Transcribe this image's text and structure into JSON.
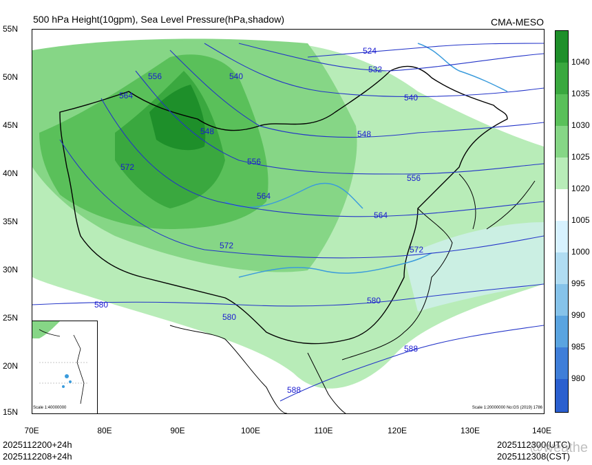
{
  "header": {
    "title": "500 hPa Height(10gpm), Sea Level Pressure(hPa,shadow)",
    "source": "CMA-MESO"
  },
  "axes": {
    "lat_labels": [
      "55N",
      "50N",
      "45N",
      "40N",
      "35N",
      "30N",
      "25N",
      "20N",
      "15N"
    ],
    "lon_labels": [
      "70E",
      "80E",
      "90E",
      "100E",
      "110E",
      "120E",
      "130E",
      "140E"
    ]
  },
  "colorbar": {
    "labels": [
      "1040",
      "1035",
      "1030",
      "1025",
      "1020",
      "1005",
      "1000",
      "995",
      "990",
      "985",
      "980"
    ],
    "colors": [
      "#1e8f2a",
      "#3aa83f",
      "#5ac05a",
      "#86d686",
      "#b8ecb8",
      "#ffffff",
      "#d7f2ff",
      "#b0dcf2",
      "#86c3ea",
      "#5aa4e0",
      "#3f7ed8",
      "#2a5fcf"
    ]
  },
  "contours": {
    "labels": [
      "524",
      "532",
      "540",
      "540",
      "548",
      "548",
      "556",
      "556",
      "556",
      "564",
      "564",
      "564",
      "572",
      "572",
      "572",
      "580",
      "580",
      "580",
      "588",
      "588"
    ]
  },
  "inset": {
    "scale": "Scale 1:40000000"
  },
  "map_notes": {
    "scale_note": "Scale 1:20000000 No:GS (2019) 1786"
  },
  "footer": {
    "init_utc": "2025112200+24h",
    "init_cst": "2025112208+24h",
    "valid_utc": "2025112300(UTC)",
    "valid_cst": "2025112308(CST)"
  },
  "watermark": "@weathe"
}
